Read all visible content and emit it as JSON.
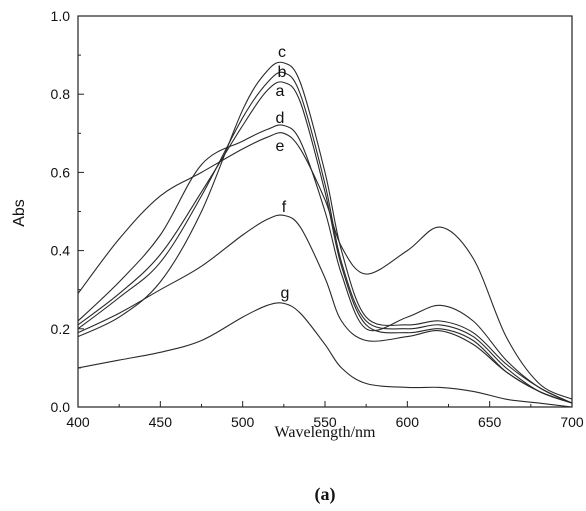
{
  "caption": "(a)",
  "chart_data": {
    "type": "line",
    "title": "",
    "xlabel": "Wavelength/nm",
    "ylabel": "Abs",
    "xlim": [
      400,
      700
    ],
    "ylim": [
      0.0,
      1.0
    ],
    "x_ticks": [
      400,
      450,
      500,
      550,
      600,
      650,
      700
    ],
    "y_ticks": [
      "0.0",
      "0.2",
      "0.4",
      "0.6",
      "0.8",
      "1.0"
    ],
    "x": [
      400,
      425,
      450,
      475,
      500,
      515,
      525,
      535,
      550,
      560,
      575,
      600,
      620,
      640,
      660,
      680,
      700
    ],
    "series": [
      {
        "name": "a",
        "values": [
          0.21,
          0.29,
          0.39,
          0.55,
          0.72,
          0.81,
          0.83,
          0.78,
          0.55,
          0.36,
          0.21,
          0.19,
          0.2,
          0.17,
          0.09,
          0.04,
          0.01
        ]
      },
      {
        "name": "b",
        "values": [
          0.2,
          0.28,
          0.37,
          0.54,
          0.74,
          0.83,
          0.855,
          0.8,
          0.57,
          0.37,
          0.22,
          0.2,
          0.21,
          0.18,
          0.1,
          0.04,
          0.01
        ]
      },
      {
        "name": "c",
        "values": [
          0.18,
          0.23,
          0.32,
          0.5,
          0.76,
          0.86,
          0.88,
          0.83,
          0.6,
          0.4,
          0.23,
          0.21,
          0.22,
          0.19,
          0.11,
          0.05,
          0.01
        ]
      },
      {
        "name": "d",
        "values": [
          0.22,
          0.32,
          0.44,
          0.62,
          0.68,
          0.71,
          0.72,
          0.68,
          0.5,
          0.34,
          0.2,
          0.23,
          0.26,
          0.22,
          0.12,
          0.05,
          0.01
        ]
      },
      {
        "name": "e",
        "values": [
          0.29,
          0.43,
          0.54,
          0.6,
          0.66,
          0.69,
          0.7,
          0.66,
          0.53,
          0.41,
          0.34,
          0.4,
          0.46,
          0.38,
          0.18,
          0.06,
          0.02
        ]
      },
      {
        "name": "f",
        "values": [
          0.19,
          0.24,
          0.3,
          0.36,
          0.44,
          0.48,
          0.49,
          0.46,
          0.33,
          0.22,
          0.17,
          0.18,
          0.195,
          0.16,
          0.09,
          0.04,
          0.01
        ]
      },
      {
        "name": "g",
        "values": [
          0.1,
          0.12,
          0.14,
          0.17,
          0.23,
          0.26,
          0.265,
          0.24,
          0.16,
          0.1,
          0.06,
          0.05,
          0.05,
          0.04,
          0.02,
          0.01,
          0.0
        ]
      }
    ],
    "grid": false,
    "legend": "labels placed at curve peaks"
  }
}
